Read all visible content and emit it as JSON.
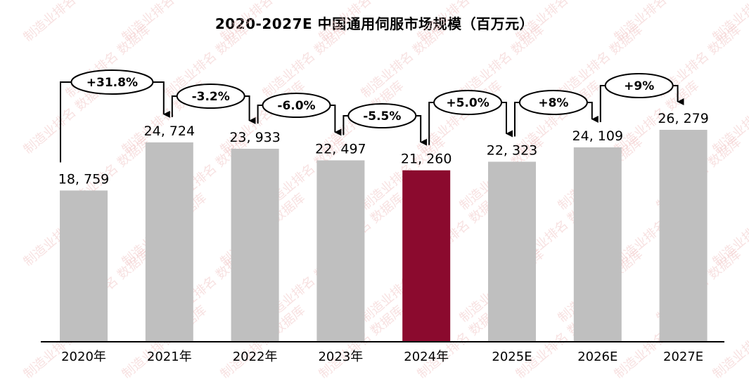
{
  "title": "2020-2027E  中国通用伺服市场规模（百万元）",
  "colors": {
    "bar": "#bfbfbf",
    "highlight": "#8b0a2e",
    "axis": "#000000"
  },
  "watermark": "制造业排名 数据库",
  "chart_data": {
    "type": "bar",
    "title": "2020-2027E 中国通用伺服市场规模（百万元）",
    "xlabel": "",
    "ylabel": "",
    "categories": [
      "2020年",
      "2021年",
      "2022年",
      "2023年",
      "2024年",
      "2025E",
      "2026E",
      "2027E"
    ],
    "values": [
      18759,
      24724,
      23933,
      22497,
      21260,
      22323,
      24109,
      26279
    ],
    "value_labels": [
      "18, 759",
      "24, 724",
      "23, 933",
      "22, 497",
      "21, 260",
      "22, 323",
      "24, 109",
      "26, 279"
    ],
    "growth_annotations": [
      "+31.8%",
      "-3.2%",
      "-6.0%",
      "-5.5%",
      "+5.0%",
      "+8%",
      "+9%"
    ],
    "highlight_index": 4,
    "grid": false,
    "legend": "none",
    "unit": "百万元"
  }
}
